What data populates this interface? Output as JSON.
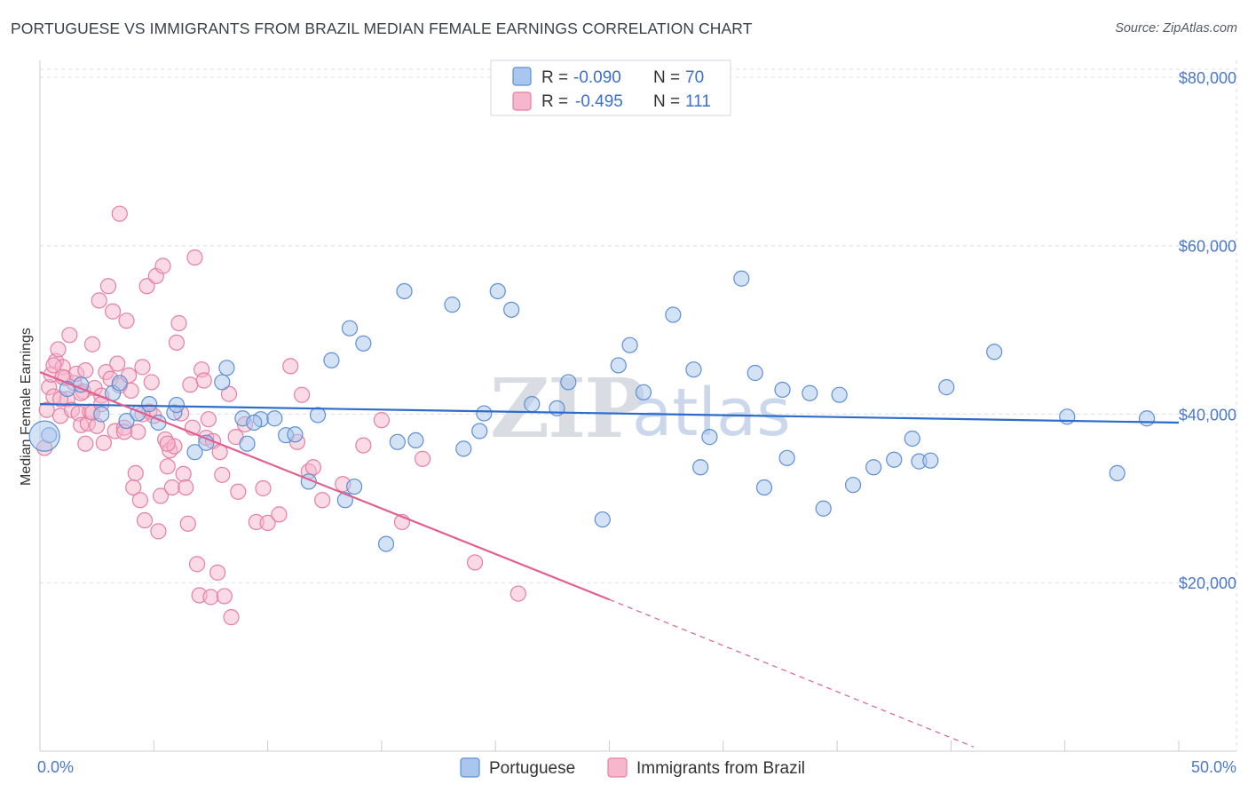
{
  "title": "PORTUGUESE VS IMMIGRANTS FROM BRAZIL MEDIAN FEMALE EARNINGS CORRELATION CHART",
  "source": "Source: ZipAtlas.com",
  "watermark": {
    "left": "ZIP",
    "right": "atlas"
  },
  "colors": {
    "blue_fill": "#a9c6ee",
    "blue_stroke": "#5d8fd6",
    "blue_line": "#2d6cc9",
    "pink_fill": "#f6b6cb",
    "pink_stroke": "#e57fa3",
    "pink_line": "#e0608f",
    "grid": "#dcdfe6",
    "tick_text": "#4a78c8"
  },
  "legend": {
    "rows": [
      {
        "r_label": "R =",
        "r_value": "-0.090",
        "n_label": "N =",
        "n_value": "70"
      },
      {
        "r_label": "R =",
        "r_value": "-0.495",
        "n_label": "N =",
        "n_value": "111"
      }
    ]
  },
  "chart_data": {
    "type": "scatter",
    "title": "PORTUGUESE VS IMMIGRANTS FROM BRAZIL MEDIAN FEMALE EARNINGS CORRELATION CHART",
    "xlabel": "",
    "ylabel": "Median Female Earnings",
    "xlim": [
      0,
      50
    ],
    "ylim": [
      0,
      82000
    ],
    "x_tick_labels": {
      "min": "0.0%",
      "max": "50.0%"
    },
    "y_ticks": [
      {
        "value": 20000,
        "label": "$20,000"
      },
      {
        "value": 40000,
        "label": "$40,000"
      },
      {
        "value": 60000,
        "label": "$60,000"
      },
      {
        "value": 80000,
        "label": "$80,000"
      }
    ],
    "grid": true,
    "legend_placement": "top-center",
    "series": [
      {
        "name": "Portuguese",
        "r": -0.09,
        "n": 70,
        "trend": {
          "x0": 0,
          "y0": 41200,
          "x1": 50,
          "y1": 39000
        },
        "points": [
          [
            0.4,
            37500
          ],
          [
            1.2,
            43000
          ],
          [
            1.8,
            43500
          ],
          [
            2.7,
            40000
          ],
          [
            3.2,
            42500
          ],
          [
            3.8,
            39200
          ],
          [
            4.3,
            40100
          ],
          [
            4.8,
            41200
          ],
          [
            5.2,
            39000
          ],
          [
            5.9,
            40200
          ],
          [
            6.8,
            35500
          ],
          [
            7.3,
            36600
          ],
          [
            8.0,
            43800
          ],
          [
            8.2,
            45500
          ],
          [
            8.9,
            39500
          ],
          [
            9.1,
            36500
          ],
          [
            9.7,
            39400
          ],
          [
            10.3,
            39500
          ],
          [
            10.8,
            37500
          ],
          [
            11.2,
            37600
          ],
          [
            11.8,
            32000
          ],
          [
            12.2,
            39900
          ],
          [
            12.8,
            46400
          ],
          [
            13.4,
            29800
          ],
          [
            13.6,
            50200
          ],
          [
            13.8,
            31400
          ],
          [
            14.2,
            48400
          ],
          [
            15.2,
            24600
          ],
          [
            15.7,
            36700
          ],
          [
            16.0,
            54600
          ],
          [
            16.5,
            36900
          ],
          [
            18.1,
            53000
          ],
          [
            18.6,
            35900
          ],
          [
            19.3,
            38000
          ],
          [
            19.5,
            40100
          ],
          [
            20.1,
            54600
          ],
          [
            20.7,
            52400
          ],
          [
            21.6,
            41200
          ],
          [
            22.7,
            40700
          ],
          [
            23.2,
            43800
          ],
          [
            24.7,
            27500
          ],
          [
            25.4,
            45800
          ],
          [
            25.9,
            48200
          ],
          [
            26.5,
            42600
          ],
          [
            27.8,
            51800
          ],
          [
            28.7,
            45300
          ],
          [
            29.0,
            33700
          ],
          [
            29.4,
            37300
          ],
          [
            30.8,
            56100
          ],
          [
            31.4,
            44900
          ],
          [
            31.8,
            31300
          ],
          [
            32.6,
            42900
          ],
          [
            32.8,
            34800
          ],
          [
            33.8,
            42500
          ],
          [
            34.4,
            28800
          ],
          [
            35.1,
            42300
          ],
          [
            35.7,
            31600
          ],
          [
            36.6,
            33700
          ],
          [
            37.5,
            34600
          ],
          [
            38.3,
            37100
          ],
          [
            38.6,
            34400
          ],
          [
            39.1,
            34500
          ],
          [
            39.8,
            43200
          ],
          [
            41.9,
            47400
          ],
          [
            45.1,
            39700
          ],
          [
            47.3,
            33000
          ],
          [
            48.6,
            39500
          ],
          [
            3.5,
            43700
          ],
          [
            6.0,
            41100
          ],
          [
            9.4,
            39000
          ]
        ]
      },
      {
        "name": "Immigrants from Brazil",
        "r": -0.495,
        "n": 111,
        "trend": {
          "x0": 0,
          "y0": 45000,
          "x1": 25,
          "y1": 18000
        },
        "trend_extension": {
          "x0": 25,
          "y0": 18000,
          "x1": 41,
          "y1": 500
        },
        "points": [
          [
            0.2,
            36000
          ],
          [
            0.3,
            40500
          ],
          [
            0.4,
            43200
          ],
          [
            0.5,
            44700
          ],
          [
            0.6,
            42100
          ],
          [
            0.7,
            46300
          ],
          [
            0.8,
            47700
          ],
          [
            0.9,
            39800
          ],
          [
            1.0,
            45600
          ],
          [
            1.1,
            44300
          ],
          [
            1.2,
            41800
          ],
          [
            1.3,
            49400
          ],
          [
            1.4,
            40500
          ],
          [
            1.5,
            43700
          ],
          [
            1.6,
            44800
          ],
          [
            1.7,
            40100
          ],
          [
            1.8,
            38700
          ],
          [
            1.9,
            42700
          ],
          [
            2.0,
            36500
          ],
          [
            2.0,
            45200
          ],
          [
            2.1,
            38900
          ],
          [
            2.2,
            40300
          ],
          [
            2.3,
            48300
          ],
          [
            2.4,
            43100
          ],
          [
            2.5,
            38600
          ],
          [
            2.6,
            53500
          ],
          [
            2.7,
            42200
          ],
          [
            2.8,
            36600
          ],
          [
            2.9,
            45000
          ],
          [
            3.0,
            55200
          ],
          [
            3.1,
            44200
          ],
          [
            3.2,
            52200
          ],
          [
            3.3,
            38000
          ],
          [
            3.4,
            46000
          ],
          [
            3.5,
            43400
          ],
          [
            3.5,
            63800
          ],
          [
            3.7,
            38400
          ],
          [
            3.8,
            51100
          ],
          [
            3.9,
            44600
          ],
          [
            4.0,
            42800
          ],
          [
            4.1,
            31300
          ],
          [
            4.2,
            33000
          ],
          [
            4.3,
            37900
          ],
          [
            4.4,
            29800
          ],
          [
            4.5,
            45600
          ],
          [
            4.6,
            27400
          ],
          [
            4.7,
            55200
          ],
          [
            4.8,
            40300
          ],
          [
            4.9,
            43800
          ],
          [
            5.0,
            39800
          ],
          [
            5.1,
            56400
          ],
          [
            5.2,
            26100
          ],
          [
            5.3,
            30300
          ],
          [
            5.4,
            57600
          ],
          [
            5.5,
            37000
          ],
          [
            5.6,
            33800
          ],
          [
            5.7,
            35700
          ],
          [
            5.8,
            31300
          ],
          [
            5.9,
            36200
          ],
          [
            6.0,
            48500
          ],
          [
            6.1,
            50800
          ],
          [
            6.2,
            40100
          ],
          [
            6.3,
            32900
          ],
          [
            6.4,
            31300
          ],
          [
            6.5,
            27000
          ],
          [
            6.6,
            43500
          ],
          [
            6.7,
            38400
          ],
          [
            6.8,
            58600
          ],
          [
            6.9,
            22200
          ],
          [
            7.0,
            18500
          ],
          [
            7.1,
            45300
          ],
          [
            7.2,
            44000
          ],
          [
            7.3,
            37200
          ],
          [
            7.4,
            39400
          ],
          [
            7.5,
            18300
          ],
          [
            7.6,
            36800
          ],
          [
            7.8,
            21200
          ],
          [
            7.9,
            35500
          ],
          [
            8.0,
            32800
          ],
          [
            8.1,
            18400
          ],
          [
            8.3,
            42400
          ],
          [
            8.4,
            15900
          ],
          [
            8.6,
            37300
          ],
          [
            8.7,
            30800
          ],
          [
            9.0,
            38800
          ],
          [
            9.5,
            27200
          ],
          [
            9.8,
            31200
          ],
          [
            10.0,
            27100
          ],
          [
            10.5,
            28100
          ],
          [
            11.0,
            45700
          ],
          [
            11.3,
            36700
          ],
          [
            11.5,
            42300
          ],
          [
            11.8,
            33200
          ],
          [
            12.0,
            33700
          ],
          [
            12.4,
            29800
          ],
          [
            13.3,
            31700
          ],
          [
            14.2,
            36300
          ],
          [
            15.9,
            27200
          ],
          [
            16.8,
            34700
          ],
          [
            19.1,
            22400
          ],
          [
            21.0,
            18700
          ],
          [
            15.0,
            39300
          ],
          [
            1.0,
            44400
          ],
          [
            2.3,
            40200
          ],
          [
            3.7,
            37900
          ],
          [
            5.6,
            36500
          ],
          [
            1.8,
            42500
          ],
          [
            0.9,
            41800
          ],
          [
            2.7,
            41200
          ],
          [
            4.5,
            40000
          ],
          [
            0.6,
            45800
          ]
        ]
      }
    ]
  }
}
